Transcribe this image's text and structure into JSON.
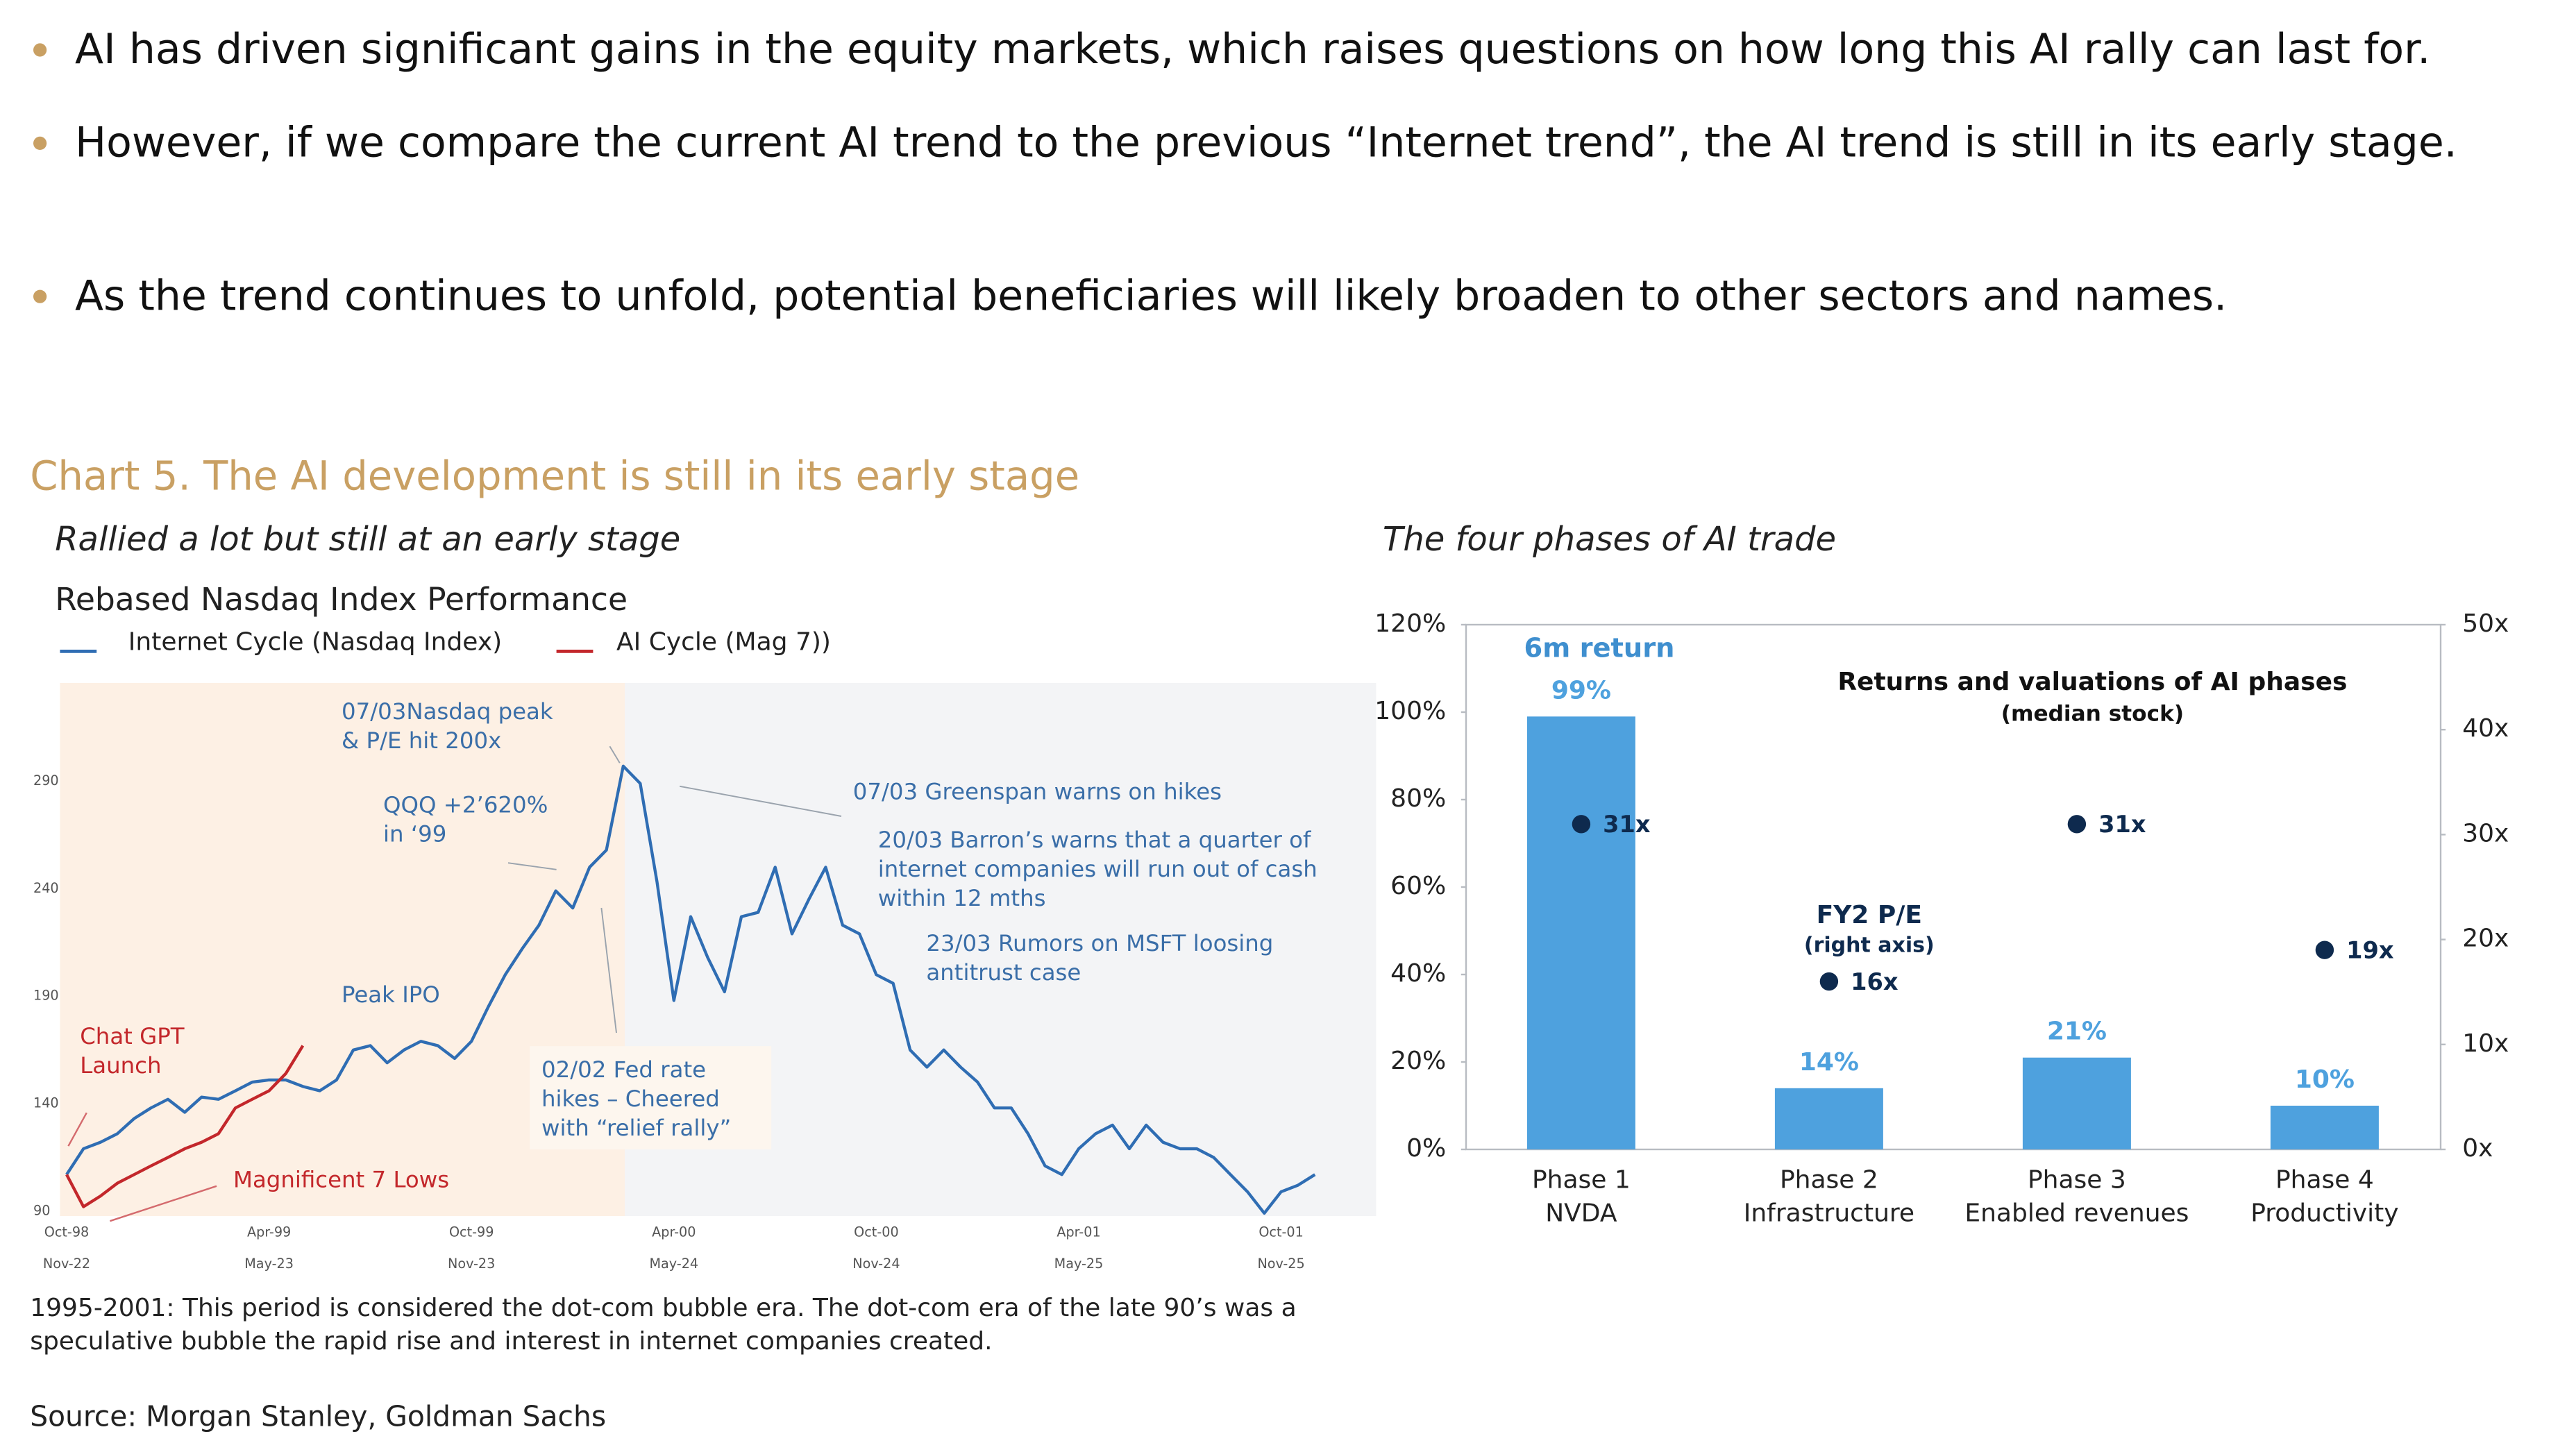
{
  "bullets": [
    "AI has driven significant gains in the equity markets, which raises questions on how long this AI rally can last for.",
    "However, if we compare the current AI trend to the previous “Internet trend”, the AI trend is still in its early stage.",
    "As the trend continues to unfold, potential beneficiaries will likely broaden to other sectors and names."
  ],
  "section_title": "Chart 5. The AI development is still in its early stage",
  "footnote": "1995-2001: This period is considered the dot-com bubble era. The dot-com era of the late 90’s was a speculative bubble the rapid rise and interest in internet companies created.",
  "source": "Source: Morgan Stanley, Goldman Sachs",
  "chart_data": [
    {
      "type": "line",
      "heading": "Rallied a lot but still at an early stage",
      "title": "Rebased Nasdaq Index Performance",
      "categories": [
        "Oct-98",
        null,
        null,
        null,
        null,
        null,
        null,
        null,
        null,
        null,
        null,
        null,
        "Apr-99",
        null,
        null,
        null,
        null,
        null,
        null,
        null,
        null,
        null,
        null,
        null,
        "Oct-99",
        null,
        null,
        null,
        null,
        null,
        null,
        null,
        null,
        null,
        null,
        null,
        "Apr-00",
        null,
        null,
        null,
        null,
        null,
        null,
        null,
        null,
        null,
        null,
        null,
        "Oct-00",
        null,
        null,
        null,
        null,
        null,
        null,
        null,
        null,
        null,
        null,
        null,
        "Apr-01",
        null,
        null,
        null,
        null,
        null,
        null,
        null,
        null,
        null,
        null,
        null,
        "Oct-01",
        null,
        null
      ],
      "categories2": [
        "Nov-22",
        null,
        null,
        null,
        null,
        null,
        null,
        null,
        null,
        null,
        null,
        null,
        "May-23",
        null,
        null,
        null,
        null,
        null,
        null,
        null,
        null,
        null,
        null,
        null,
        "Nov-23",
        null,
        null,
        null,
        null,
        null,
        null,
        null,
        null,
        null,
        null,
        null,
        "May-24",
        null,
        null,
        null,
        null,
        null,
        null,
        null,
        null,
        null,
        null,
        null,
        "Nov-24",
        null,
        null,
        null,
        null,
        null,
        null,
        null,
        null,
        null,
        null,
        null,
        "May-25",
        null,
        null,
        null,
        null,
        null,
        null,
        null,
        null,
        null,
        null,
        null,
        "Nov-25",
        null,
        null
      ],
      "series": [
        {
          "name": "Internet Cycle (Nasdaq Index)",
          "color": "#2f6db3",
          "values": [
            107,
            119,
            122,
            126,
            133,
            138,
            142,
            136,
            143,
            142,
            146,
            150,
            151,
            151,
            148,
            146,
            151,
            165,
            167,
            159,
            165,
            169,
            167,
            161,
            169,
            185,
            200,
            212,
            223,
            239,
            231,
            250,
            258,
            297,
            289,
            243,
            188,
            227,
            208,
            192,
            227,
            229,
            250,
            219,
            235,
            250,
            223,
            219,
            200,
            196,
            165,
            157,
            165,
            157,
            150,
            138,
            138,
            126,
            111,
            107,
            119,
            126,
            130,
            119,
            130,
            122,
            119,
            119,
            115,
            107,
            99,
            89,
            99,
            102,
            107
          ]
        },
        {
          "name": "AI Cycle (Mag 7))",
          "color": "#c3272b",
          "values": [
            107,
            92,
            97,
            103,
            107,
            111,
            115,
            119,
            122,
            126,
            138,
            142,
            146,
            154,
            167,
            null,
            null,
            null,
            null,
            null,
            null,
            null,
            null,
            null,
            null,
            null,
            null,
            null,
            null,
            null,
            null,
            null,
            null,
            null,
            null,
            null,
            null,
            null,
            null,
            null,
            null,
            null,
            null,
            null,
            null,
            null,
            null,
            null,
            null,
            null,
            null,
            null,
            null,
            null,
            null,
            null,
            null,
            null,
            null,
            null,
            null,
            null,
            null,
            null,
            null,
            null,
            null,
            null,
            null,
            null,
            null,
            null,
            null,
            null,
            null
          ]
        }
      ],
      "ylim": [
        87,
        335
      ],
      "yticks": [
        90,
        140,
        190,
        240,
        290
      ],
      "annotations": [
        {
          "lines": [
            "07/03Nasdaq peak",
            "& P/E hit 200x"
          ],
          "color": "#3a6ea8"
        },
        {
          "lines": [
            "QQQ +2’620%",
            "in ‘99"
          ],
          "color": "#3a6ea8"
        },
        {
          "lines": [
            "07/03 Greenspan warns on hikes"
          ],
          "color": "#3a6ea8"
        },
        {
          "lines": [
            "20/03 Barron’s warns that a quarter of",
            "internet companies will run out of cash",
            "within 12 mths"
          ],
          "color": "#3a6ea8"
        },
        {
          "lines": [
            "23/03 Rumors on MSFT loosing",
            "antitrust case"
          ],
          "color": "#3a6ea8"
        },
        {
          "lines": [
            "Peak IPO"
          ],
          "color": "#3a6ea8"
        },
        {
          "lines": [
            "02/02 Fed rate",
            "hikes – Cheered",
            "with “relief rally”"
          ],
          "color": "#3a6ea8"
        },
        {
          "lines": [
            "Chat GPT",
            "Launch"
          ],
          "color": "#c3272b"
        },
        {
          "lines": [
            "Magnificent 7 Lows"
          ],
          "color": "#c3272b"
        }
      ]
    },
    {
      "type": "bar",
      "heading": "The four phases of AI trade",
      "title": "Returns and valuations of AI phases",
      "subtitle": "(median stock)",
      "categories": [
        "Phase 1",
        "Phase 2",
        "Phase 3",
        "Phase 4"
      ],
      "categories_sub": [
        "NVDA",
        "Infrastructure",
        "Enabled revenues",
        "Productivity"
      ],
      "series": [
        {
          "name": "6m return",
          "color": "#4ea1de",
          "values": [
            99,
            14,
            21,
            10
          ],
          "value_labels": [
            "99%",
            "14%",
            "21%",
            "10%"
          ]
        },
        {
          "name": "FY2 P/E",
          "color": "#0e2a4e",
          "axis": "y2",
          "values": [
            31,
            16,
            31,
            19
          ],
          "value_labels": [
            "31x",
            "16x",
            "31x",
            "19x"
          ]
        }
      ],
      "annotations": [
        "(right axis)"
      ],
      "ylim": [
        0,
        120
      ],
      "yticks": [
        {
          "value": 0,
          "label": "0%"
        },
        {
          "value": 20,
          "label": "20%"
        },
        {
          "value": 40,
          "label": "40%"
        },
        {
          "value": 60,
          "label": "60%"
        },
        {
          "value": 80,
          "label": "80%"
        },
        {
          "value": 100,
          "label": "100%"
        },
        {
          "value": 120,
          "label": "120%"
        }
      ],
      "y2lim": [
        0,
        50
      ],
      "y2ticks": [
        {
          "value": 0,
          "label": "0x"
        },
        {
          "value": 10,
          "label": "10x"
        },
        {
          "value": 20,
          "label": "20x"
        },
        {
          "value": 30,
          "label": "30x"
        },
        {
          "value": 40,
          "label": "40x"
        },
        {
          "value": 50,
          "label": "50x"
        }
      ]
    }
  ]
}
